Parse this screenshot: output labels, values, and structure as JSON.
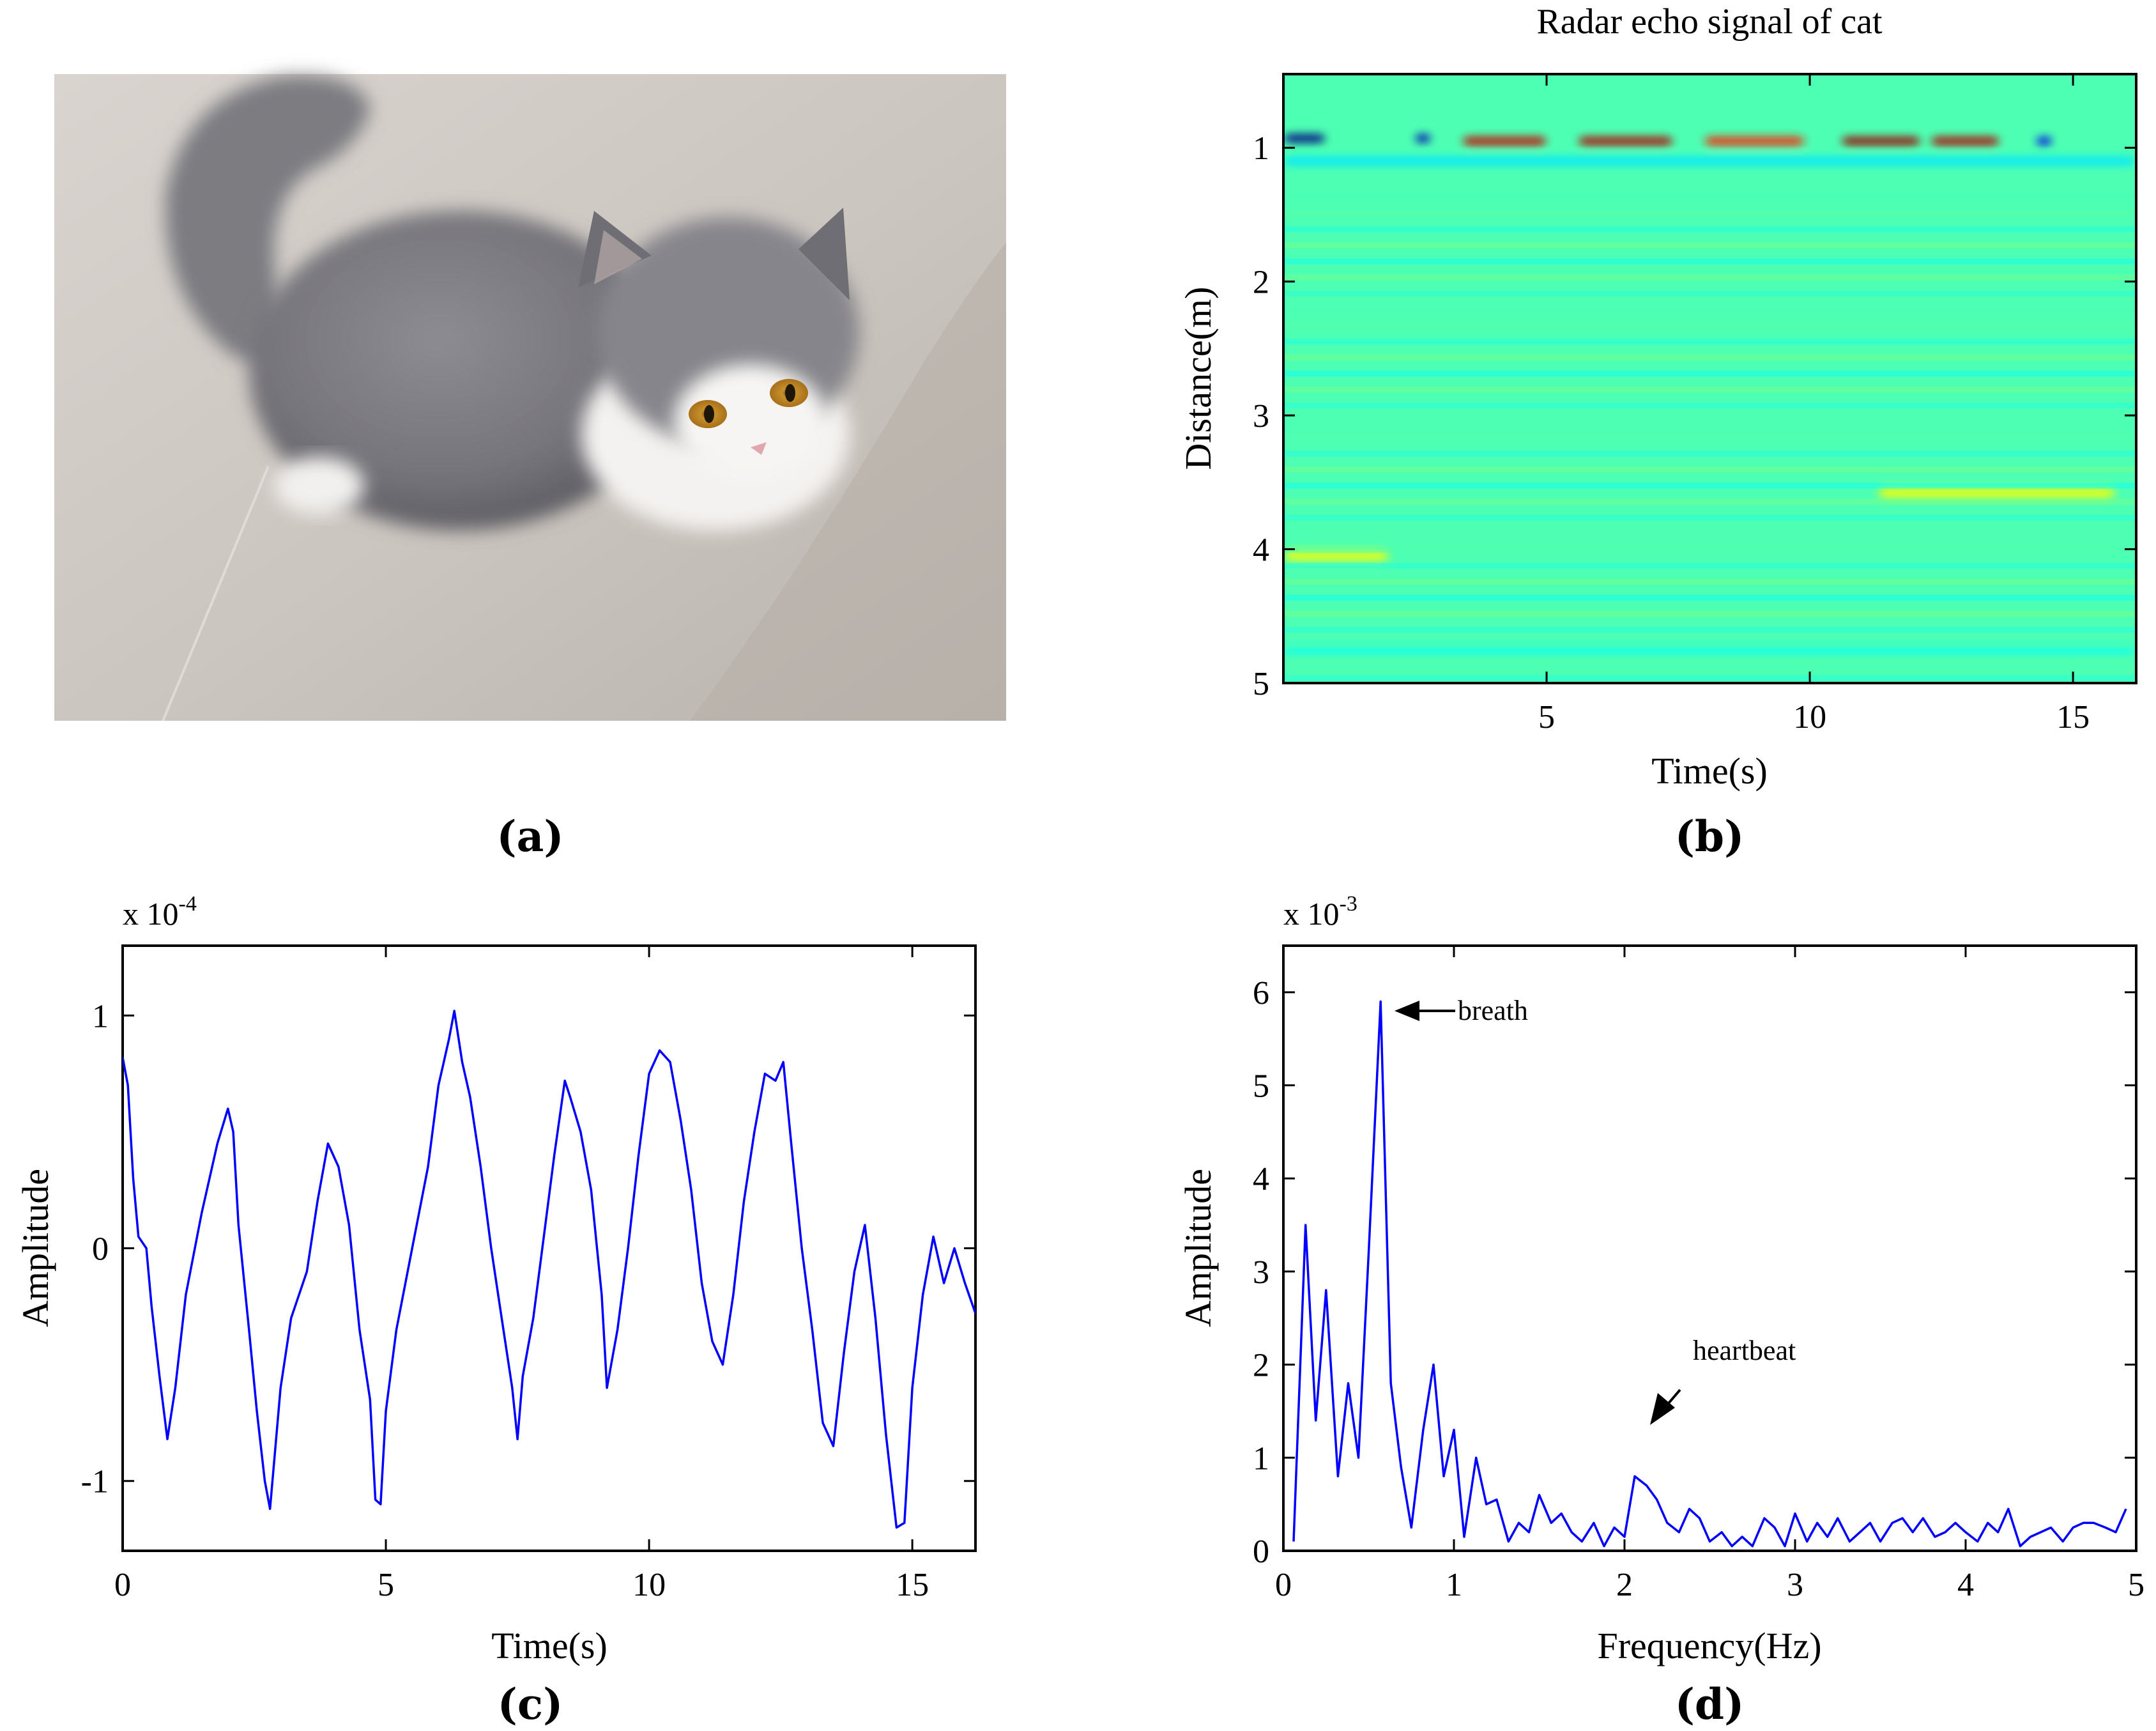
{
  "panel_labels": {
    "a": "(a)",
    "b": "(b)",
    "c": "(c)",
    "d": "(d)"
  },
  "colors": {
    "signal": "#0000ff",
    "axis": "#000000",
    "fur": "#7f7f83",
    "floor": "#c8c2bc",
    "eye": "#c8902a"
  },
  "chart_data": [
    {
      "panel": "b",
      "type": "heatmap",
      "title": "Radar echo signal of cat",
      "xlabel": "Time(s)",
      "ylabel": "Distance(m)",
      "xlim": [
        0,
        16.2
      ],
      "ylim": [
        0.45,
        5
      ],
      "xticks": [
        5,
        10,
        15
      ],
      "yticks": [
        1,
        2,
        3,
        4,
        5
      ],
      "xtick_labels": [
        "5",
        "10",
        "15"
      ],
      "ytick_labels": [
        "1",
        "2",
        "3",
        "4",
        "5"
      ],
      "colormap": "jet",
      "background_value": 0.45,
      "features": [
        {
          "t0": 0.0,
          "t1": 0.8,
          "d": 0.93,
          "dd": 0.06,
          "value": 0.0
        },
        {
          "t0": 2.5,
          "t1": 2.8,
          "d": 0.93,
          "dd": 0.06,
          "value": 0.05
        },
        {
          "t0": 3.4,
          "t1": 5.0,
          "d": 0.95,
          "dd": 0.06,
          "value": 0.93
        },
        {
          "t0": 5.6,
          "t1": 7.4,
          "d": 0.95,
          "dd": 0.06,
          "value": 0.95
        },
        {
          "t0": 8.0,
          "t1": 9.9,
          "d": 0.95,
          "dd": 0.06,
          "value": 0.85
        },
        {
          "t0": 10.6,
          "t1": 12.1,
          "d": 0.95,
          "dd": 0.06,
          "value": 0.97
        },
        {
          "t0": 12.3,
          "t1": 13.6,
          "d": 0.95,
          "dd": 0.06,
          "value": 0.95
        },
        {
          "t0": 14.3,
          "t1": 14.6,
          "d": 0.95,
          "dd": 0.06,
          "value": 0.1
        },
        {
          "t0": 11.3,
          "t1": 15.8,
          "d": 3.58,
          "dd": 0.07,
          "value": 0.62
        },
        {
          "t0": 0.0,
          "t1": 16.2,
          "d": 1.1,
          "dd": 0.06,
          "value": 0.35
        },
        {
          "t0": 0.0,
          "t1": 2.0,
          "d": 4.05,
          "dd": 0.08,
          "value": 0.6
        },
        {
          "t0": 0.0,
          "t1": 16.2,
          "d": 4.75,
          "dd": 0.05,
          "value": 0.38
        }
      ]
    },
    {
      "panel": "c",
      "type": "line",
      "xlabel": "Time(s)",
      "ylabel": "Amplitude",
      "scale_label": "x 10",
      "scale_exp": "-4",
      "xlim": [
        0,
        16.2
      ],
      "ylim": [
        -1.3,
        1.3
      ],
      "xticks": [
        0,
        5,
        10,
        15
      ],
      "yticks": [
        -1,
        0,
        1
      ],
      "xtick_labels": [
        "0",
        "5",
        "10",
        "15"
      ],
      "ytick_labels": [
        "-1",
        "0",
        "1"
      ],
      "series": [
        {
          "name": "signal",
          "x": [
            0,
            0.1,
            0.2,
            0.3,
            0.45,
            0.55,
            0.7,
            0.85,
            1.0,
            1.2,
            1.5,
            1.8,
            2.0,
            2.1,
            2.2,
            2.4,
            2.55,
            2.7,
            2.8,
            3.0,
            3.2,
            3.5,
            3.7,
            3.9,
            4.1,
            4.3,
            4.5,
            4.7,
            4.8,
            4.9,
            5.0,
            5.2,
            5.5,
            5.8,
            6.0,
            6.1,
            6.2,
            6.3,
            6.45,
            6.6,
            6.8,
            7.0,
            7.2,
            7.4,
            7.5,
            7.6,
            7.8,
            8.0,
            8.2,
            8.4,
            8.5,
            8.7,
            8.9,
            9.1,
            9.2,
            9.4,
            9.6,
            9.8,
            10.0,
            10.2,
            10.4,
            10.6,
            10.8,
            11.0,
            11.2,
            11.4,
            11.6,
            11.8,
            12.0,
            12.2,
            12.4,
            12.55,
            12.7,
            12.9,
            13.1,
            13.3,
            13.5,
            13.7,
            13.9,
            14.1,
            14.3,
            14.5,
            14.7,
            14.85,
            15.0,
            15.2,
            15.4,
            15.6,
            15.8,
            16.0,
            16.2
          ],
          "y": [
            0.82,
            0.7,
            0.3,
            0.05,
            0.0,
            -0.25,
            -0.55,
            -0.82,
            -0.6,
            -0.2,
            0.15,
            0.45,
            0.6,
            0.5,
            0.1,
            -0.35,
            -0.7,
            -1.0,
            -1.12,
            -0.6,
            -0.3,
            -0.1,
            0.2,
            0.45,
            0.35,
            0.1,
            -0.35,
            -0.65,
            -1.08,
            -1.1,
            -0.7,
            -0.35,
            0.0,
            0.35,
            0.7,
            0.8,
            0.9,
            1.02,
            0.8,
            0.65,
            0.35,
            0.0,
            -0.3,
            -0.6,
            -0.82,
            -0.55,
            -0.3,
            0.05,
            0.4,
            0.72,
            0.65,
            0.5,
            0.25,
            -0.2,
            -0.6,
            -0.35,
            0.0,
            0.4,
            0.75,
            0.85,
            0.8,
            0.55,
            0.25,
            -0.15,
            -0.4,
            -0.5,
            -0.2,
            0.2,
            0.5,
            0.75,
            0.72,
            0.8,
            0.45,
            0.0,
            -0.35,
            -0.75,
            -0.85,
            -0.45,
            -0.1,
            0.1,
            -0.3,
            -0.8,
            -1.2,
            -1.18,
            -0.6,
            -0.2,
            0.05,
            -0.15,
            0.0,
            -0.15,
            -0.28
          ]
        }
      ]
    },
    {
      "panel": "d",
      "type": "line",
      "xlabel": "Frequency(Hz)",
      "ylabel": "Amplitude",
      "scale_label": "x 10",
      "scale_exp": "-3",
      "xlim": [
        0,
        5
      ],
      "ylim": [
        0,
        6.5
      ],
      "xticks": [
        0,
        1,
        2,
        3,
        4,
        5
      ],
      "yticks": [
        0,
        1,
        2,
        3,
        4,
        5,
        6
      ],
      "xtick_labels": [
        "0",
        "1",
        "2",
        "3",
        "4",
        "5"
      ],
      "ytick_labels": [
        "0",
        "1",
        "2",
        "3",
        "4",
        "5",
        "6"
      ],
      "annotations": [
        {
          "text": "breath",
          "x": 0.57,
          "y": 5.9
        },
        {
          "text": "heartbeat",
          "x": 2.1,
          "y": 1.1
        }
      ],
      "series": [
        {
          "name": "spectrum",
          "x": [
            0.06,
            0.13,
            0.19,
            0.25,
            0.32,
            0.38,
            0.44,
            0.5,
            0.57,
            0.63,
            0.69,
            0.75,
            0.82,
            0.88,
            0.94,
            1.0,
            1.06,
            1.13,
            1.19,
            1.25,
            1.32,
            1.38,
            1.44,
            1.5,
            1.57,
            1.63,
            1.69,
            1.75,
            1.82,
            1.88,
            1.94,
            2.0,
            2.06,
            2.13,
            2.19,
            2.25,
            2.32,
            2.38,
            2.44,
            2.5,
            2.57,
            2.63,
            2.69,
            2.75,
            2.82,
            2.88,
            2.94,
            3.0,
            3.07,
            3.13,
            3.19,
            3.25,
            3.32,
            3.38,
            3.44,
            3.5,
            3.57,
            3.63,
            3.69,
            3.75,
            3.82,
            3.88,
            3.94,
            4.0,
            4.07,
            4.13,
            4.19,
            4.25,
            4.32,
            4.38,
            4.44,
            4.5,
            4.57,
            4.63,
            4.69,
            4.75,
            4.82,
            4.88,
            4.94
          ],
          "y": [
            0.1,
            3.5,
            1.4,
            2.8,
            0.8,
            1.8,
            1.0,
            3.2,
            5.9,
            1.8,
            0.9,
            0.25,
            1.3,
            2.0,
            0.8,
            1.3,
            0.15,
            1.0,
            0.5,
            0.55,
            0.1,
            0.3,
            0.2,
            0.6,
            0.3,
            0.4,
            0.2,
            0.1,
            0.3,
            0.05,
            0.25,
            0.15,
            0.8,
            0.7,
            0.55,
            0.3,
            0.2,
            0.45,
            0.35,
            0.1,
            0.2,
            0.05,
            0.15,
            0.05,
            0.35,
            0.25,
            0.05,
            0.4,
            0.1,
            0.3,
            0.15,
            0.35,
            0.1,
            0.2,
            0.3,
            0.1,
            0.3,
            0.35,
            0.2,
            0.35,
            0.15,
            0.2,
            0.3,
            0.2,
            0.1,
            0.3,
            0.2,
            0.45,
            0.05,
            0.15,
            0.2,
            0.25,
            0.1,
            0.25,
            0.3,
            0.3,
            0.25,
            0.2,
            0.45
          ]
        }
      ]
    }
  ]
}
